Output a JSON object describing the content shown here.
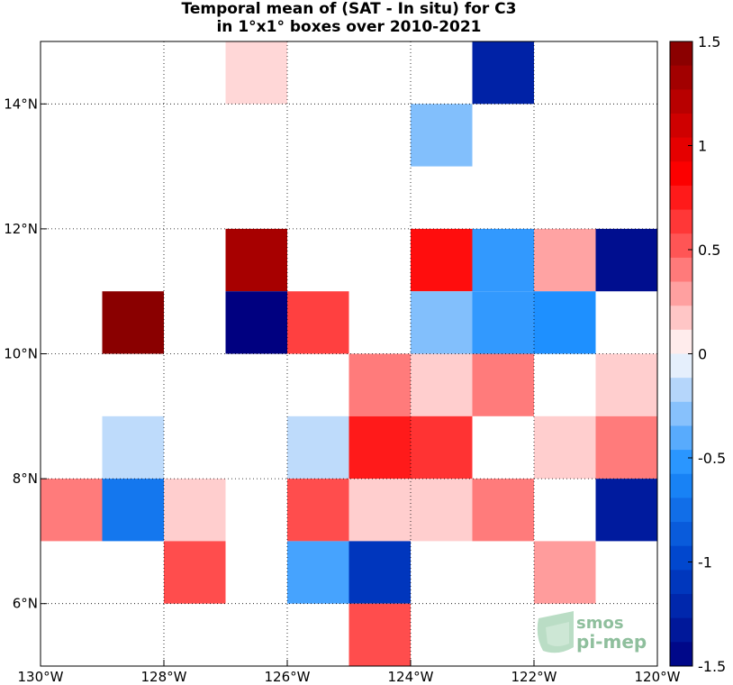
{
  "title": {
    "line1": "Temporal mean of (SAT - In situ) for C3",
    "line2": "in 1°x1° boxes over 2010-2021"
  },
  "logo": {
    "line1": "smos",
    "line2": "pi-mep"
  },
  "chart_data": {
    "type": "heatmap",
    "title": "Temporal mean of (SAT - In situ) for C3 in 1°x1° boxes over 2010-2021",
    "xlim": [
      -130,
      -120
    ],
    "ylim": [
      5,
      15
    ],
    "x_ticks": [
      -130,
      -128,
      -126,
      -124,
      -122,
      -120
    ],
    "x_tick_labels": [
      "130°W",
      "128°W",
      "126°W",
      "124°W",
      "122°W",
      "120°W"
    ],
    "y_ticks": [
      6,
      8,
      10,
      12,
      14
    ],
    "y_tick_labels": [
      "6°N",
      "8°N",
      "10°N",
      "12°N",
      "14°N"
    ],
    "grid": "dotted",
    "colorbar": {
      "min": -1.5,
      "max": 1.5,
      "levels": 26,
      "ticks": [
        1.5,
        1,
        0.5,
        0,
        -0.5,
        -1,
        -1.5
      ],
      "tick_labels": [
        "1.5",
        "1",
        "0.5",
        "0",
        "-0.5",
        "-1",
        "-1.5"
      ],
      "colormap": "blue-white-red"
    },
    "cells": [
      {
        "lon": -127,
        "lat": 14,
        "value": 0.12
      },
      {
        "lon": -123,
        "lat": 14,
        "value": -1.25
      },
      {
        "lon": -124,
        "lat": 13,
        "value": -0.3
      },
      {
        "lon": -127,
        "lat": 11,
        "value": 1.3
      },
      {
        "lon": -124,
        "lat": 11,
        "value": 0.8
      },
      {
        "lon": -123,
        "lat": 11,
        "value": -0.5
      },
      {
        "lon": -122,
        "lat": 11,
        "value": 0.28
      },
      {
        "lon": -121,
        "lat": 11,
        "value": -1.4
      },
      {
        "lon": -129,
        "lat": 10,
        "value": 1.45
      },
      {
        "lon": -127,
        "lat": 10,
        "value": -1.5
      },
      {
        "lon": -126,
        "lat": 10,
        "value": 0.6
      },
      {
        "lon": -124,
        "lat": 10,
        "value": -0.3
      },
      {
        "lon": -123,
        "lat": 10,
        "value": -0.5
      },
      {
        "lon": -122,
        "lat": 10,
        "value": -0.55
      },
      {
        "lon": -125,
        "lat": 9,
        "value": 0.4
      },
      {
        "lon": -124,
        "lat": 9,
        "value": 0.15
      },
      {
        "lon": -123,
        "lat": 9,
        "value": 0.4
      },
      {
        "lon": -121,
        "lat": 9,
        "value": 0.15
      },
      {
        "lon": -129,
        "lat": 8,
        "value": -0.15
      },
      {
        "lon": -126,
        "lat": 8,
        "value": -0.15
      },
      {
        "lon": -125,
        "lat": 8,
        "value": 0.75
      },
      {
        "lon": -124,
        "lat": 8,
        "value": 0.65
      },
      {
        "lon": -122,
        "lat": 8,
        "value": 0.15
      },
      {
        "lon": -121,
        "lat": 8,
        "value": 0.4
      },
      {
        "lon": -130,
        "lat": 7,
        "value": 0.4
      },
      {
        "lon": -129,
        "lat": 7,
        "value": -0.7
      },
      {
        "lon": -128,
        "lat": 7,
        "value": 0.15
      },
      {
        "lon": -126,
        "lat": 7,
        "value": 0.55
      },
      {
        "lon": -125,
        "lat": 7,
        "value": 0.15
      },
      {
        "lon": -124,
        "lat": 7,
        "value": 0.15
      },
      {
        "lon": -123,
        "lat": 7,
        "value": 0.4
      },
      {
        "lon": -121,
        "lat": 7,
        "value": -1.3
      },
      {
        "lon": -128,
        "lat": 6,
        "value": 0.55
      },
      {
        "lon": -126,
        "lat": 6,
        "value": -0.45
      },
      {
        "lon": -125,
        "lat": 6,
        "value": -1.1
      },
      {
        "lon": -122,
        "lat": 6,
        "value": 0.3
      },
      {
        "lon": -125,
        "lat": 5,
        "value": 0.55
      }
    ]
  }
}
